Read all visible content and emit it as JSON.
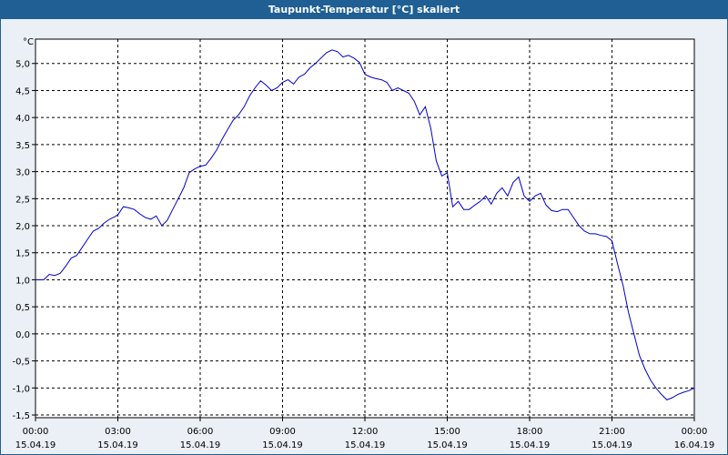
{
  "window": {
    "title": "Taupunkt-Temperatur [°C] skaliert"
  },
  "colors": {
    "title_bg": "#1f5f94",
    "line": "#0000cc",
    "plot_bg": "#ffffff",
    "grid": "#000000"
  },
  "chart_data": {
    "type": "line",
    "title": "Taupunkt-Temperatur [°C] skaliert",
    "ylabel": "°C",
    "xlabel": "",
    "ylim": [
      -1.55,
      5.45
    ],
    "yticks": [
      "5,0",
      "4,5",
      "4,0",
      "3,5",
      "3,0",
      "2,5",
      "2,0",
      "1,5",
      "1,0",
      "0,5",
      "0,0",
      "-0,5",
      "-1,0",
      "-1,5"
    ],
    "ytick_values": [
      5.0,
      4.5,
      4.0,
      3.5,
      3.0,
      2.5,
      2.0,
      1.5,
      1.0,
      0.5,
      0.0,
      -0.5,
      -1.0,
      -1.5
    ],
    "xlim": [
      0,
      24
    ],
    "xticks": [
      {
        "hour": 0,
        "time": "00:00",
        "date": "15.04.19"
      },
      {
        "hour": 3,
        "time": "03:00",
        "date": "15.04.19"
      },
      {
        "hour": 6,
        "time": "06:00",
        "date": "15.04.19"
      },
      {
        "hour": 9,
        "time": "09:00",
        "date": "15.04.19"
      },
      {
        "hour": 12,
        "time": "12:00",
        "date": "15.04.19"
      },
      {
        "hour": 15,
        "time": "15:00",
        "date": "15.04.19"
      },
      {
        "hour": 18,
        "time": "18:00",
        "date": "15.04.19"
      },
      {
        "hour": 21,
        "time": "21:00",
        "date": "15.04.19"
      },
      {
        "hour": 24,
        "time": "00:00",
        "date": "16.04.19"
      }
    ],
    "grid": true,
    "series": [
      {
        "x": [
          0,
          0.3,
          0.5,
          0.7,
          0.9,
          1.1,
          1.3,
          1.5,
          1.7,
          1.9,
          2.1,
          2.3,
          2.5,
          2.7,
          2.9,
          3.0,
          3.2,
          3.4,
          3.6,
          3.8,
          4.0,
          4.2,
          4.4,
          4.6,
          4.8,
          5.0,
          5.2,
          5.4,
          5.6,
          5.8,
          6.0,
          6.2,
          6.4,
          6.6,
          6.8,
          7.0,
          7.2,
          7.4,
          7.6,
          7.8,
          8.0,
          8.2,
          8.4,
          8.6,
          8.8,
          9.0,
          9.2,
          9.4,
          9.6,
          9.8,
          10.0,
          10.2,
          10.4,
          10.6,
          10.8,
          11.0,
          11.2,
          11.4,
          11.6,
          11.8,
          12.0,
          12.2,
          12.4,
          12.6,
          12.8,
          13.0,
          13.2,
          13.4,
          13.6,
          13.8,
          14.0,
          14.2,
          14.4,
          14.6,
          14.8,
          15.0,
          15.2,
          15.4,
          15.6,
          15.8,
          16.0,
          16.2,
          16.4,
          16.6,
          16.8,
          17.0,
          17.2,
          17.4,
          17.6,
          17.8,
          18.0,
          18.2,
          18.4,
          18.6,
          18.8,
          19.0,
          19.2,
          19.4,
          19.6,
          19.8,
          20.0,
          20.2,
          20.4,
          20.6,
          20.8,
          21.0,
          21.2,
          21.4,
          21.6,
          21.8,
          22.0,
          22.2,
          22.4,
          22.6,
          22.8,
          23.0,
          23.2,
          23.4,
          23.6,
          23.8,
          24.0
        ],
        "y": [
          1.0,
          1.0,
          1.1,
          1.08,
          1.12,
          1.25,
          1.4,
          1.45,
          1.6,
          1.75,
          1.9,
          1.95,
          2.05,
          2.12,
          2.17,
          2.2,
          2.35,
          2.33,
          2.3,
          2.22,
          2.15,
          2.12,
          2.18,
          2.0,
          2.1,
          2.3,
          2.5,
          2.7,
          2.98,
          3.05,
          3.1,
          3.12,
          3.25,
          3.4,
          3.6,
          3.78,
          3.95,
          4.05,
          4.2,
          4.4,
          4.55,
          4.68,
          4.6,
          4.5,
          4.55,
          4.65,
          4.7,
          4.62,
          4.75,
          4.8,
          4.92,
          5.0,
          5.1,
          5.2,
          5.25,
          5.22,
          5.12,
          5.15,
          5.1,
          5.02,
          4.8,
          4.75,
          4.72,
          4.7,
          4.65,
          4.5,
          4.55,
          4.5,
          4.45,
          4.3,
          4.05,
          4.2,
          3.8,
          3.2,
          2.92,
          2.98,
          2.35,
          2.45,
          2.3,
          2.3,
          2.38,
          2.45,
          2.55,
          2.4,
          2.6,
          2.7,
          2.55,
          2.8,
          2.9,
          2.55,
          2.45,
          2.55,
          2.6,
          2.38,
          2.28,
          2.26,
          2.3,
          2.3,
          2.15,
          2.0,
          1.9,
          1.85,
          1.85,
          1.82,
          1.8,
          1.72,
          1.3,
          0.9,
          0.4,
          0.0,
          -0.4,
          -0.65,
          -0.85,
          -1.0,
          -1.12,
          -1.22,
          -1.18,
          -1.12,
          -1.08,
          -1.05,
          -1.0
        ]
      }
    ]
  }
}
